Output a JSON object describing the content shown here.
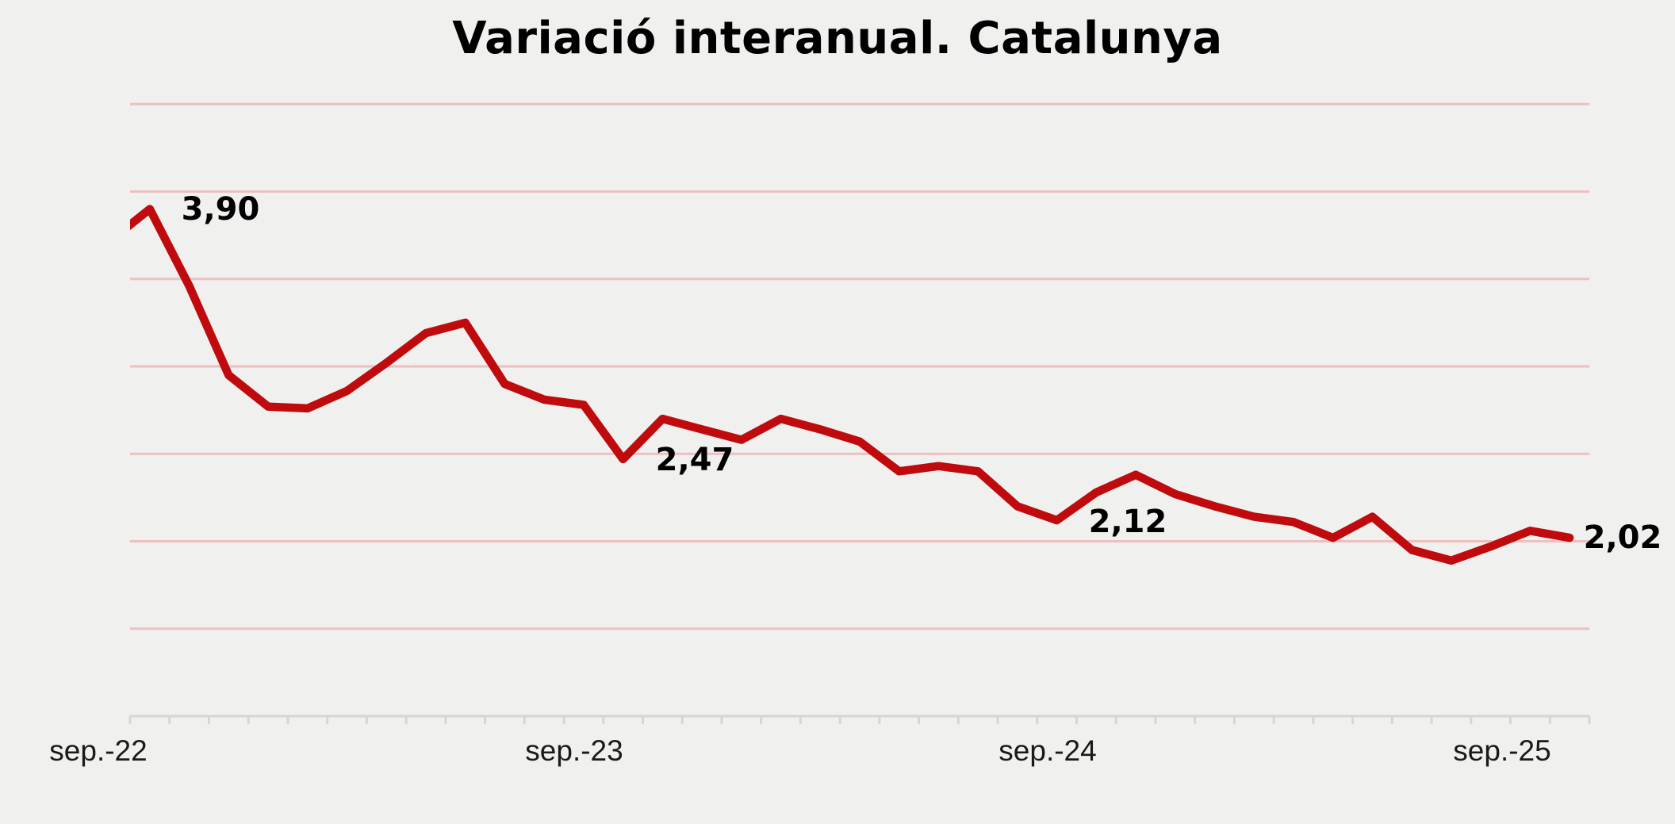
{
  "title": "Variació interanual. Catalunya",
  "colors": {
    "line": "#c00b0e",
    "gridline": "#ecc0bf",
    "axis": "#d6d6d6",
    "background": "#f0f0ee",
    "text": "#000000"
  },
  "chart_data": {
    "type": "line",
    "title": "Variació interanual. Catalunya",
    "x": [
      "2022-08",
      "2022-09",
      "2022-10",
      "2022-11",
      "2022-12",
      "2023-01",
      "2023-02",
      "2023-03",
      "2023-04",
      "2023-05",
      "2023-06",
      "2023-07",
      "2023-08",
      "2023-09",
      "2023-10",
      "2023-11",
      "2023-12",
      "2024-01",
      "2024-02",
      "2024-03",
      "2024-04",
      "2024-05",
      "2024-06",
      "2024-07",
      "2024-08",
      "2024-09",
      "2024-10",
      "2024-11",
      "2024-12",
      "2025-01",
      "2025-02",
      "2025-03",
      "2025-04",
      "2025-05",
      "2025-06",
      "2025-07",
      "2025-08",
      "2025-09"
    ],
    "series": [
      {
        "name": "Variació interanual",
        "values": [
          3.72,
          3.9,
          3.46,
          2.95,
          2.77,
          2.76,
          2.86,
          3.02,
          3.19,
          3.25,
          2.9,
          2.81,
          2.78,
          2.47,
          2.7,
          2.64,
          2.58,
          2.7,
          2.64,
          2.57,
          2.4,
          2.43,
          2.4,
          2.2,
          2.12,
          2.28,
          2.38,
          2.27,
          2.2,
          2.14,
          2.11,
          2.02,
          2.14,
          1.95,
          1.89,
          1.97,
          2.06,
          2.02
        ]
      }
    ],
    "xtick_labels": [
      "sep.-22",
      "sep.-23",
      "sep.-24",
      "sep.-25"
    ],
    "xlabel": "",
    "ylabel": "",
    "ylim": [
      1.0,
      4.5
    ],
    "gridline_step": 0.5,
    "grid": true,
    "legend": false,
    "annotations": [
      {
        "text": "3,90",
        "month": "2022-09",
        "value": 3.9
      },
      {
        "text": "2,47",
        "month": "2023-09",
        "value": 2.47
      },
      {
        "text": "2,12",
        "month": "2024-08",
        "value": 2.12
      },
      {
        "text": "2,02",
        "month": "2025-09",
        "value": 2.02
      }
    ]
  }
}
